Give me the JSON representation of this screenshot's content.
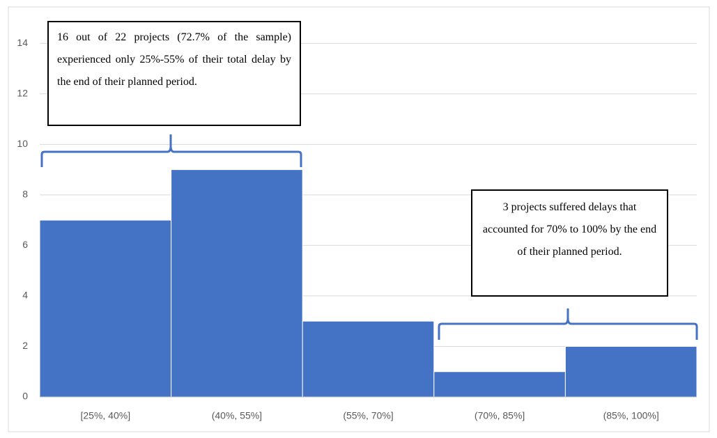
{
  "chart_data": {
    "type": "bar",
    "categories": [
      "[25%, 40%]",
      "(40%, 55%]",
      "(55%, 70%]",
      "(70%, 85%]",
      "(85%, 100%]"
    ],
    "values": [
      7,
      9,
      3,
      1,
      2
    ],
    "color": "#4472c4",
    "ylim": [
      0,
      15
    ],
    "yticks": [
      0,
      2,
      4,
      6,
      8,
      10,
      12,
      14
    ],
    "grid": true,
    "annotations": [
      "16 out of 22 projects (72.7% of the sample) experienced only 25%-55% of their total delay by the end of their planned period.",
      "3 projects suffered delays that accounted for 70% to 100% by the end of their planned period."
    ]
  }
}
